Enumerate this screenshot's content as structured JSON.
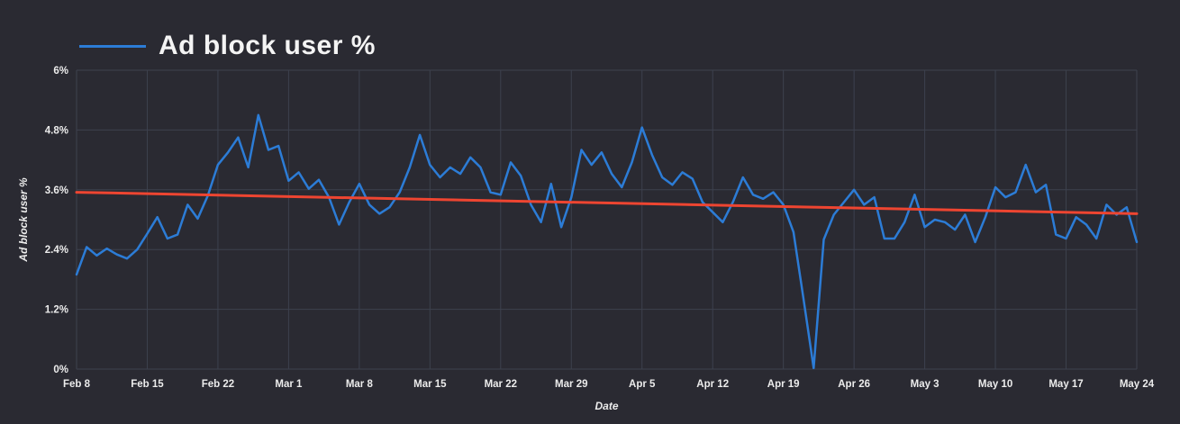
{
  "chart_data": {
    "type": "line",
    "title": "Ad block user %",
    "xlabel": "Date",
    "ylabel": "Ad block user %",
    "ylim": [
      0,
      6
    ],
    "grid": true,
    "legend": {
      "position": "top-left",
      "items": [
        {
          "label": "Ad block user %",
          "color": "#2c7cd6"
        }
      ]
    },
    "y_ticks": {
      "values": [
        0,
        1.2,
        2.4,
        3.6,
        4.8,
        6
      ],
      "labels": [
        "0%",
        "1.2%",
        "2.4%",
        "3.6%",
        "4.8%",
        "6%"
      ]
    },
    "x_ticks": {
      "labels": [
        "Feb 8",
        "Feb 15",
        "Feb 22",
        "Mar 1",
        "Mar 8",
        "Mar 15",
        "Mar 22",
        "Mar 29",
        "Apr 5",
        "Apr 12",
        "Apr 19",
        "Apr 26",
        "May 3",
        "May 10",
        "May 17",
        "May 24"
      ],
      "interval_days": 7
    },
    "x_range": {
      "start": "Feb 8",
      "end": "May 24",
      "step_days": 1
    },
    "series": [
      {
        "name": "Ad block user %",
        "color": "#2c7cd6",
        "width": 2.5,
        "values": [
          1.9,
          2.45,
          2.28,
          2.42,
          2.3,
          2.22,
          2.4,
          2.72,
          3.05,
          2.62,
          2.7,
          3.3,
          3.02,
          3.48,
          4.1,
          4.35,
          4.65,
          4.05,
          5.1,
          4.4,
          4.48,
          3.78,
          3.95,
          3.62,
          3.8,
          3.45,
          2.9,
          3.35,
          3.72,
          3.3,
          3.12,
          3.25,
          3.55,
          4.05,
          4.7,
          4.1,
          3.85,
          4.05,
          3.92,
          4.25,
          4.05,
          3.55,
          3.5,
          4.15,
          3.88,
          3.3,
          2.95,
          3.72,
          2.85,
          3.45,
          4.4,
          4.1,
          4.35,
          3.92,
          3.65,
          4.15,
          4.85,
          4.3,
          3.85,
          3.7,
          3.95,
          3.82,
          3.35,
          3.15,
          2.95,
          3.35,
          3.85,
          3.5,
          3.42,
          3.55,
          3.3,
          2.75,
          1.4,
          0.02,
          2.6,
          3.1,
          3.35,
          3.6,
          3.3,
          3.45,
          2.62,
          2.62,
          2.95,
          3.5,
          2.85,
          3.0,
          2.95,
          2.8,
          3.1,
          2.55,
          3.05,
          3.65,
          3.45,
          3.55,
          4.1,
          3.55,
          3.7,
          2.7,
          2.62,
          3.05,
          2.9,
          2.62,
          3.3,
          3.1,
          3.25,
          2.55
        ]
      },
      {
        "name": "trend",
        "color": "#ee4531",
        "width": 3,
        "endpoints": [
          3.55,
          3.12
        ]
      }
    ],
    "colors": {
      "background": "#2a2a32",
      "grid": "#3d414e",
      "tick_text": "#ececec",
      "title_text": "#f4f4f4"
    }
  }
}
